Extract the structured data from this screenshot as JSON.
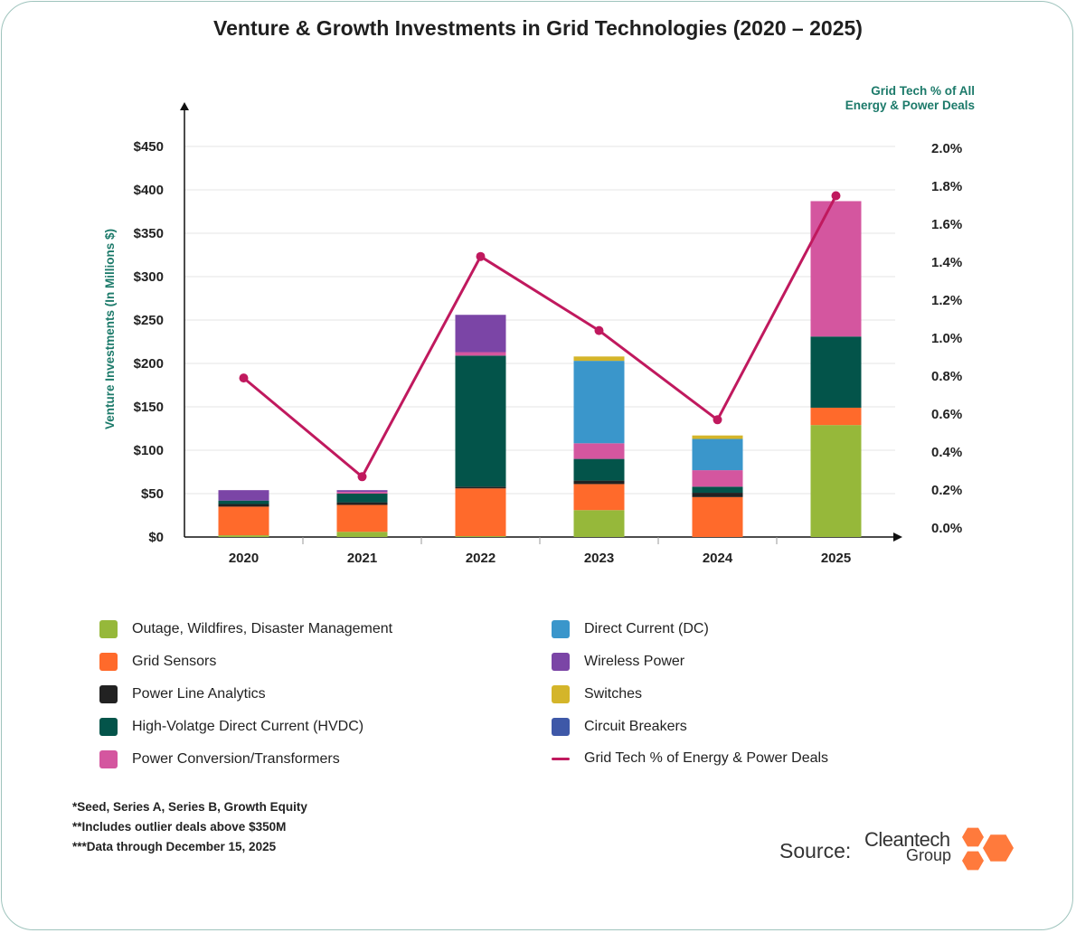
{
  "title": "Venture & Growth Investments in Grid Technologies (2020 – 2025)",
  "chart_data": {
    "type": "bar",
    "stacked": true,
    "categories": [
      "2020",
      "2021",
      "2022",
      "2023",
      "2024",
      "2025"
    ],
    "ylabel": "Venture Investments (In Millions $)",
    "y2label": "Grid Tech % of All Energy & Power Deals",
    "ylim": [
      0,
      450
    ],
    "y2lim": [
      0,
      2.0
    ],
    "yticks": [
      "$0",
      "$50",
      "$100",
      "$150",
      "$200",
      "$250",
      "$300",
      "$350",
      "$400",
      "$450"
    ],
    "y2ticks": [
      "0.0%",
      "0.2%",
      "0.4%",
      "0.6%",
      "0.8%",
      "1.0%",
      "1.2%",
      "1.4%",
      "1.6%",
      "1.8%",
      "2.0%"
    ],
    "grid": true,
    "series": [
      {
        "name": "Outage, Wildfires, Disaster Management",
        "color": "#96b83a",
        "values": [
          2,
          6,
          1,
          31,
          0,
          129
        ]
      },
      {
        "name": "Grid Sensors",
        "color": "#ff6a2b",
        "values": [
          33,
          31,
          55,
          30,
          46,
          20
        ]
      },
      {
        "name": "Power Line Analytics",
        "color": "#222222",
        "values": [
          3,
          3,
          2,
          4,
          5,
          0
        ]
      },
      {
        "name": "High-Volatge Direct Current (HVDC)",
        "color": "#03544a",
        "values": [
          4,
          10,
          151,
          25,
          7,
          82
        ]
      },
      {
        "name": "Power Conversion/Transformers",
        "color": "#d4569f",
        "values": [
          0,
          2,
          4,
          18,
          19,
          156
        ]
      },
      {
        "name": "Direct Current (DC)",
        "color": "#3a96cb",
        "values": [
          0,
          0,
          0,
          95,
          36,
          0
        ]
      },
      {
        "name": "Wireless Power",
        "color": "#7b45a6",
        "values": [
          12,
          2,
          43,
          0,
          0,
          0
        ]
      },
      {
        "name": "Switches",
        "color": "#d4b52a",
        "values": [
          0,
          0,
          0,
          5,
          4,
          0
        ]
      },
      {
        "name": "Circuit Breakers",
        "color": "#3e58a8",
        "values": [
          0,
          0,
          0,
          0,
          0,
          0
        ]
      }
    ],
    "line_series": {
      "name": "Grid Tech % of Energy & Power Deals",
      "color": "#c0195e",
      "values": [
        0.79,
        0.27,
        1.43,
        1.04,
        0.57,
        1.75
      ]
    }
  },
  "legend": [
    {
      "label": "Outage, Wildfires, Disaster Management",
      "color": "#96b83a",
      "kind": "box"
    },
    {
      "label": "Grid Sensors",
      "color": "#ff6a2b",
      "kind": "box"
    },
    {
      "label": "Power Line Analytics",
      "color": "#222222",
      "kind": "box"
    },
    {
      "label": "High-Volatge Direct Current (HVDC)",
      "color": "#03544a",
      "kind": "box"
    },
    {
      "label": "Power Conversion/Transformers",
      "color": "#d4569f",
      "kind": "box"
    },
    {
      "label": "Direct Current (DC)",
      "color": "#3a96cb",
      "kind": "box"
    },
    {
      "label": "Wireless Power",
      "color": "#7b45a6",
      "kind": "box"
    },
    {
      "label": "Switches",
      "color": "#d4b52a",
      "kind": "box"
    },
    {
      "label": "Circuit Breakers",
      "color": "#3e58a8",
      "kind": "box"
    },
    {
      "label": "Grid Tech % of Energy & Power Deals",
      "color": "#c0195e",
      "kind": "line"
    }
  ],
  "footnotes": [
    "*Seed, Series A, Series B, Growth Equity",
    "**Includes outlier deals above $350M",
    "***Data through December 15, 2025"
  ],
  "source": {
    "label": "Source:",
    "brand_top": "Cleantech",
    "brand_bottom": "Group",
    "logo_color": "#ff7a3c"
  },
  "colors": {
    "axis_label": "#1c7a6a",
    "frame": "#9fc4bd"
  }
}
